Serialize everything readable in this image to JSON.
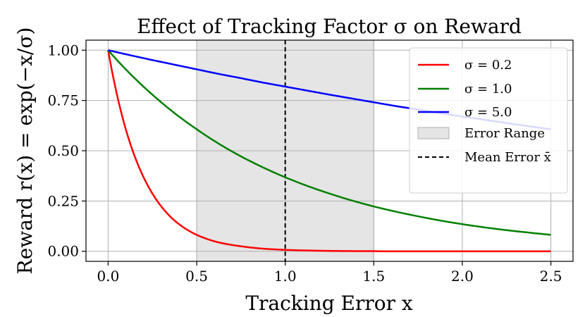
{
  "chart_data": {
    "type": "line",
    "title": "Effect of Tracking Factor σ on Reward",
    "xlabel": "Tracking Error x",
    "ylabel": "Reward r(x) = exp(−x/σ)",
    "xlim": [
      -0.125,
      2.625
    ],
    "ylim": [
      -0.05,
      1.05
    ],
    "x_ticks": [
      0.0,
      0.5,
      1.0,
      1.5,
      2.0,
      2.5
    ],
    "x_tick_labels": [
      "0.0",
      "0.5",
      "1.0",
      "1.5",
      "2.0",
      "2.5"
    ],
    "y_ticks": [
      0.0,
      0.25,
      0.5,
      0.75,
      1.0
    ],
    "y_tick_labels": [
      "0.00",
      "0.25",
      "0.50",
      "0.75",
      "1.00"
    ],
    "grid": true,
    "legend_position": "top-right",
    "x": [
      0.0,
      0.125,
      0.25,
      0.375,
      0.5,
      0.625,
      0.75,
      0.875,
      1.0,
      1.125,
      1.25,
      1.375,
      1.5,
      1.625,
      1.75,
      1.875,
      2.0,
      2.125,
      2.25,
      2.375,
      2.5
    ],
    "series": [
      {
        "name": "σ = 0.2",
        "color": "#ff0000",
        "values": [
          1.0,
          0.535,
          0.287,
          0.153,
          0.082,
          0.044,
          0.025,
          0.013,
          0.007,
          0.004,
          0.002,
          0.001,
          0.001,
          0.0,
          0.0,
          0.0,
          0.0,
          0.0,
          0.0,
          0.0,
          0.0
        ]
      },
      {
        "name": "σ = 1.0",
        "color": "#008000",
        "values": [
          1.0,
          0.882,
          0.779,
          0.687,
          0.607,
          0.535,
          0.472,
          0.417,
          0.368,
          0.325,
          0.287,
          0.253,
          0.223,
          0.197,
          0.174,
          0.153,
          0.135,
          0.119,
          0.105,
          0.093,
          0.082
        ]
      },
      {
        "name": "σ = 5.0",
        "color": "#0000ff",
        "values": [
          1.0,
          0.975,
          0.951,
          0.928,
          0.905,
          0.882,
          0.861,
          0.839,
          0.819,
          0.799,
          0.779,
          0.76,
          0.741,
          0.722,
          0.705,
          0.687,
          0.67,
          0.654,
          0.638,
          0.622,
          0.607
        ]
      }
    ],
    "shaded_region": {
      "label": "Error Range",
      "x_start": 0.5,
      "x_end": 1.5,
      "color": "#e5e5e5"
    },
    "reference_line": {
      "label": "Mean Error x̄",
      "x": 1.0,
      "color": "#000000",
      "style": "dashed"
    }
  }
}
